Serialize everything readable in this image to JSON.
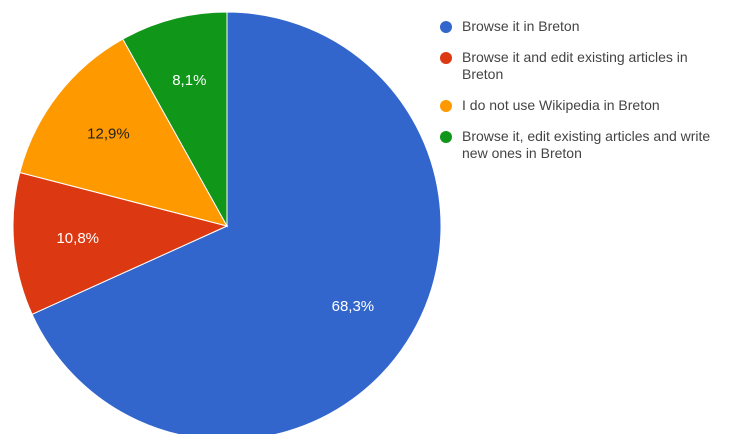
{
  "chart_data": {
    "type": "pie",
    "title": "",
    "slices": [
      {
        "label": "Browse it in Breton",
        "value": 68.3,
        "display": "68,3%",
        "color": "#3366cc",
        "label_color": "#ffffff"
      },
      {
        "label": "Browse it and edit existing articles in Breton",
        "value": 10.8,
        "display": "10,8%",
        "color": "#dc3912",
        "label_color": "#ffffff"
      },
      {
        "label": "I do not use Wikipedia in Breton",
        "value": 12.9,
        "display": "12,9%",
        "color": "#ff9900",
        "label_color": "#222222"
      },
      {
        "label": "Browse it, edit existing articles and write new ones in Breton",
        "value": 8.1,
        "display": "8,1%",
        "color": "#109618",
        "label_color": "#ffffff"
      }
    ],
    "legend_position": "right"
  }
}
